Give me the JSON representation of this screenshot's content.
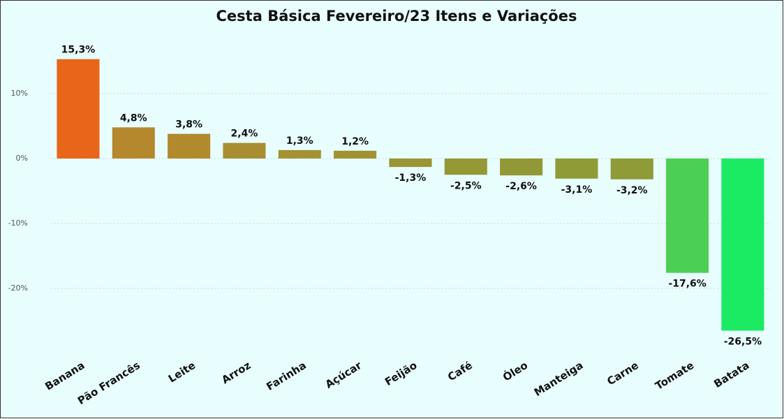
{
  "chart_data": {
    "type": "bar",
    "title": "Cesta Básica Fevereiro/23 Itens e Variações",
    "categories": [
      "Banana",
      "Pão Francês",
      "Leite",
      "Arroz",
      "Farinha",
      "Açúcar",
      "Feijão",
      "Café",
      "Óleo",
      "Manteiga",
      "Carne",
      "Tomate",
      "Batata"
    ],
    "values": [
      15.3,
      4.8,
      3.8,
      2.4,
      1.3,
      1.2,
      -1.3,
      -2.5,
      -2.6,
      -3.1,
      -3.2,
      -17.6,
      -26.5
    ],
    "value_labels": [
      "15,3%",
      "4,8%",
      "3,8%",
      "2,4%",
      "1,3%",
      "1,2%",
      "-1,3%",
      "-2,5%",
      "-2,6%",
      "-3,1%",
      "-3,2%",
      "-17,6%",
      "-26,5%"
    ],
    "colors": [
      "#e8651a",
      "#b5882e",
      "#b28a2e",
      "#a88e30",
      "#a39132",
      "#a09232",
      "#999534",
      "#949835",
      "#939836",
      "#8f9b37",
      "#8e9b37",
      "#4ccf55",
      "#1aeb63"
    ],
    "ylim": [
      -30,
      20
    ],
    "yticks": [
      {
        "value": 10,
        "label": "10%"
      },
      {
        "value": 0,
        "label": "0%"
      },
      {
        "value": -10,
        "label": "-10%"
      },
      {
        "value": -20,
        "label": "-20%"
      }
    ],
    "grid": true
  }
}
